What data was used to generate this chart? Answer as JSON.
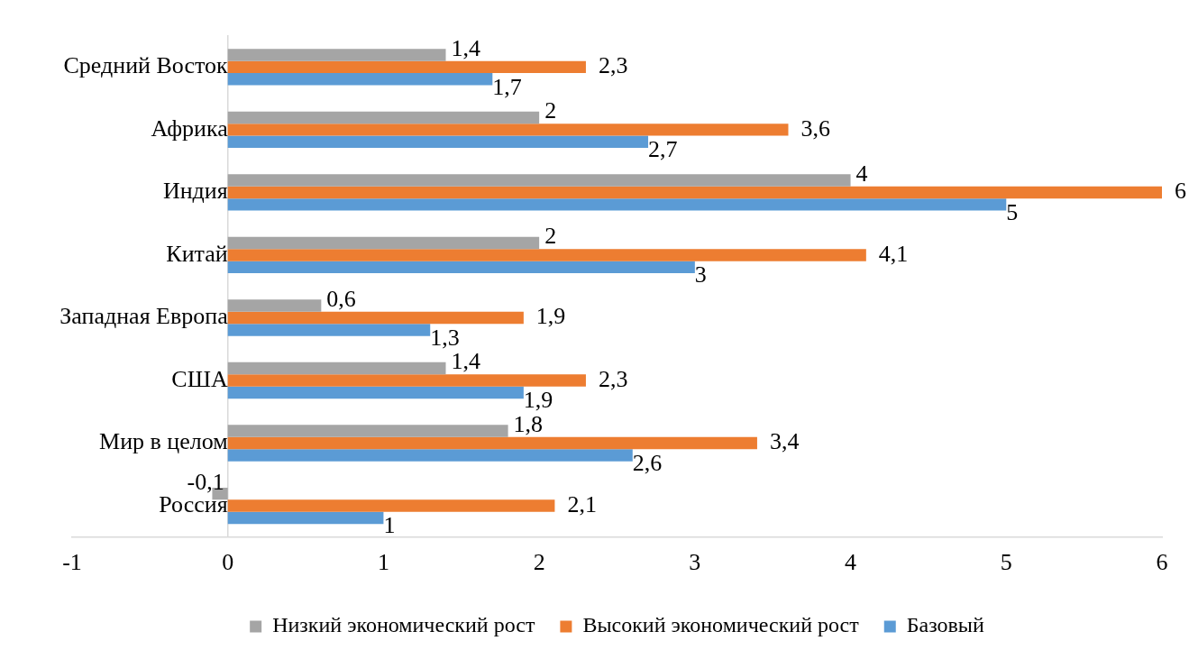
{
  "chart_data": {
    "type": "bar",
    "orientation": "horizontal",
    "categories": [
      "Средний Восток",
      "Африка",
      "Индия",
      "Китай",
      "Западная Европа",
      "США",
      "Мир в целом",
      "Россия"
    ],
    "series": [
      {
        "name": "Низкий экономический рост",
        "color": "#a5a5a5",
        "values": [
          1.4,
          2,
          4,
          2,
          0.6,
          1.4,
          1.8,
          -0.1
        ],
        "value_labels": [
          "1,4",
          "2",
          "4",
          "2",
          "0,6",
          "1,4",
          "1,8",
          "-0,1"
        ]
      },
      {
        "name": "Высокий экономический рост",
        "color": "#ed7d31",
        "values": [
          2.3,
          3.6,
          6,
          4.1,
          1.9,
          2.3,
          3.4,
          2.1
        ],
        "value_labels": [
          "2,3",
          "3,6",
          "6",
          "4,1",
          "1,9",
          "2,3",
          "3,4",
          "2,1"
        ]
      },
      {
        "name": "Базовый",
        "color": "#5b9bd5",
        "values": [
          1.7,
          2.7,
          5,
          3,
          1.3,
          1.9,
          2.6,
          1
        ],
        "value_labels": [
          "1,7",
          "2,7",
          "5",
          "3",
          "1,3",
          "1,9",
          "2,6",
          "1"
        ]
      }
    ],
    "xlim": [
      -1,
      6
    ],
    "xticks": [
      -1,
      0,
      1,
      2,
      3,
      4,
      5,
      6
    ],
    "grid": false,
    "legend": "bottom"
  }
}
